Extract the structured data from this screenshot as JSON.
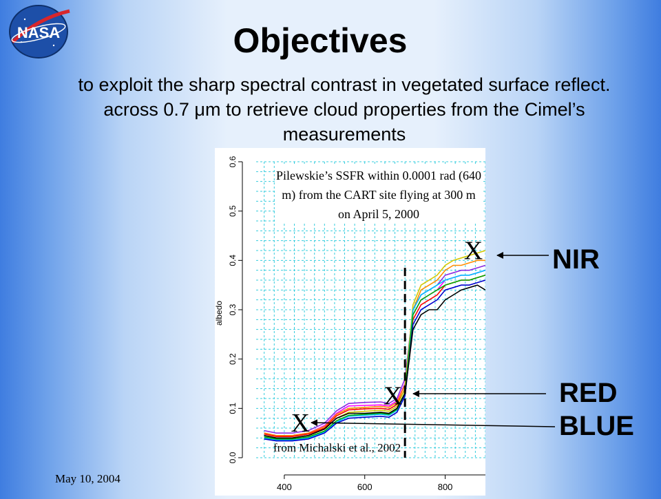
{
  "slide": {
    "title": "Objectives",
    "subtitle": "to exploit the sharp spectral contrast in vegetated surface reflect. across 0.7 μm to retrieve cloud properties from the Cimel’s measurements",
    "date": "May 10, 2004",
    "logo_text": "NASA"
  },
  "labels": {
    "nir": "NIR",
    "red": "RED",
    "blue": "BLUE"
  },
  "chart_data": {
    "type": "line",
    "ylabel": "albedo",
    "xlabel": "",
    "xlim": [
      330,
      900
    ],
    "ylim": [
      0,
      0.6
    ],
    "x_ticks": [
      400,
      600,
      800
    ],
    "y_ticks": [
      0.0,
      0.1,
      0.2,
      0.3,
      0.4,
      0.5,
      0.6
    ],
    "grid": true,
    "annotation": "Pilewskie’s SSFR within 0.0001 rad (640 m) from the CART site flying at 300 m on April 5, 2000",
    "source": "from Michalski et al., 2002",
    "vline_x": 700,
    "markers": [
      {
        "label": "X",
        "x": 440,
        "y": 0.065
      },
      {
        "label": "X",
        "x": 670,
        "y": 0.12
      },
      {
        "label": "X",
        "x": 870,
        "y": 0.415
      }
    ],
    "x": [
      350,
      380,
      420,
      460,
      500,
      530,
      560,
      600,
      640,
      660,
      680,
      700,
      720,
      740,
      760,
      780,
      800,
      820,
      840,
      860,
      880,
      900
    ],
    "series": [
      {
        "color": "#8a2be2",
        "values": [
          0.055,
          0.05,
          0.05,
          0.055,
          0.07,
          0.095,
          0.11,
          0.112,
          0.113,
          0.11,
          0.12,
          0.16,
          0.3,
          0.33,
          0.34,
          0.35,
          0.37,
          0.375,
          0.38,
          0.38,
          0.385,
          0.39
        ]
      },
      {
        "color": "#ff00ff",
        "values": [
          0.05,
          0.045,
          0.045,
          0.05,
          0.065,
          0.09,
          0.105,
          0.106,
          0.107,
          0.105,
          0.115,
          0.15,
          0.29,
          0.32,
          0.33,
          0.34,
          0.36,
          0.365,
          0.37,
          0.37,
          0.375,
          0.38
        ]
      },
      {
        "color": "#ff8c00",
        "values": [
          0.05,
          0.045,
          0.045,
          0.05,
          0.063,
          0.088,
          0.1,
          0.102,
          0.104,
          0.102,
          0.112,
          0.148,
          0.3,
          0.34,
          0.35,
          0.36,
          0.38,
          0.39,
          0.39,
          0.395,
          0.4,
          0.4
        ]
      },
      {
        "color": "#ff0000",
        "values": [
          0.048,
          0.043,
          0.043,
          0.048,
          0.06,
          0.085,
          0.097,
          0.099,
          0.1,
          0.098,
          0.108,
          0.14,
          0.28,
          0.31,
          0.32,
          0.33,
          0.35,
          0.355,
          0.36,
          0.36,
          0.365,
          0.37
        ]
      },
      {
        "color": "#d4c800",
        "values": [
          0.045,
          0.04,
          0.04,
          0.045,
          0.058,
          0.08,
          0.092,
          0.094,
          0.096,
          0.094,
          0.104,
          0.14,
          0.31,
          0.35,
          0.36,
          0.37,
          0.39,
          0.4,
          0.405,
          0.41,
          0.415,
          0.42
        ]
      },
      {
        "color": "#00bfff",
        "values": [
          0.04,
          0.036,
          0.036,
          0.04,
          0.052,
          0.072,
          0.084,
          0.086,
          0.088,
          0.086,
          0.096,
          0.13,
          0.3,
          0.33,
          0.34,
          0.35,
          0.36,
          0.365,
          0.37,
          0.37,
          0.375,
          0.38
        ]
      },
      {
        "color": "#00aa00",
        "values": [
          0.042,
          0.038,
          0.038,
          0.042,
          0.054,
          0.075,
          0.086,
          0.088,
          0.09,
          0.088,
          0.098,
          0.132,
          0.29,
          0.32,
          0.33,
          0.34,
          0.35,
          0.355,
          0.36,
          0.36,
          0.365,
          0.37
        ]
      },
      {
        "color": "#0000cd",
        "values": [
          0.038,
          0.034,
          0.034,
          0.038,
          0.05,
          0.07,
          0.08,
          0.082,
          0.084,
          0.082,
          0.092,
          0.125,
          0.27,
          0.3,
          0.31,
          0.32,
          0.34,
          0.345,
          0.35,
          0.35,
          0.355,
          0.36
        ]
      },
      {
        "color": "#000000",
        "values": [
          0.045,
          0.04,
          0.04,
          0.045,
          0.058,
          0.08,
          0.09,
          0.09,
          0.092,
          0.09,
          0.1,
          0.13,
          0.26,
          0.29,
          0.3,
          0.3,
          0.32,
          0.33,
          0.34,
          0.345,
          0.35,
          0.34
        ]
      }
    ]
  }
}
